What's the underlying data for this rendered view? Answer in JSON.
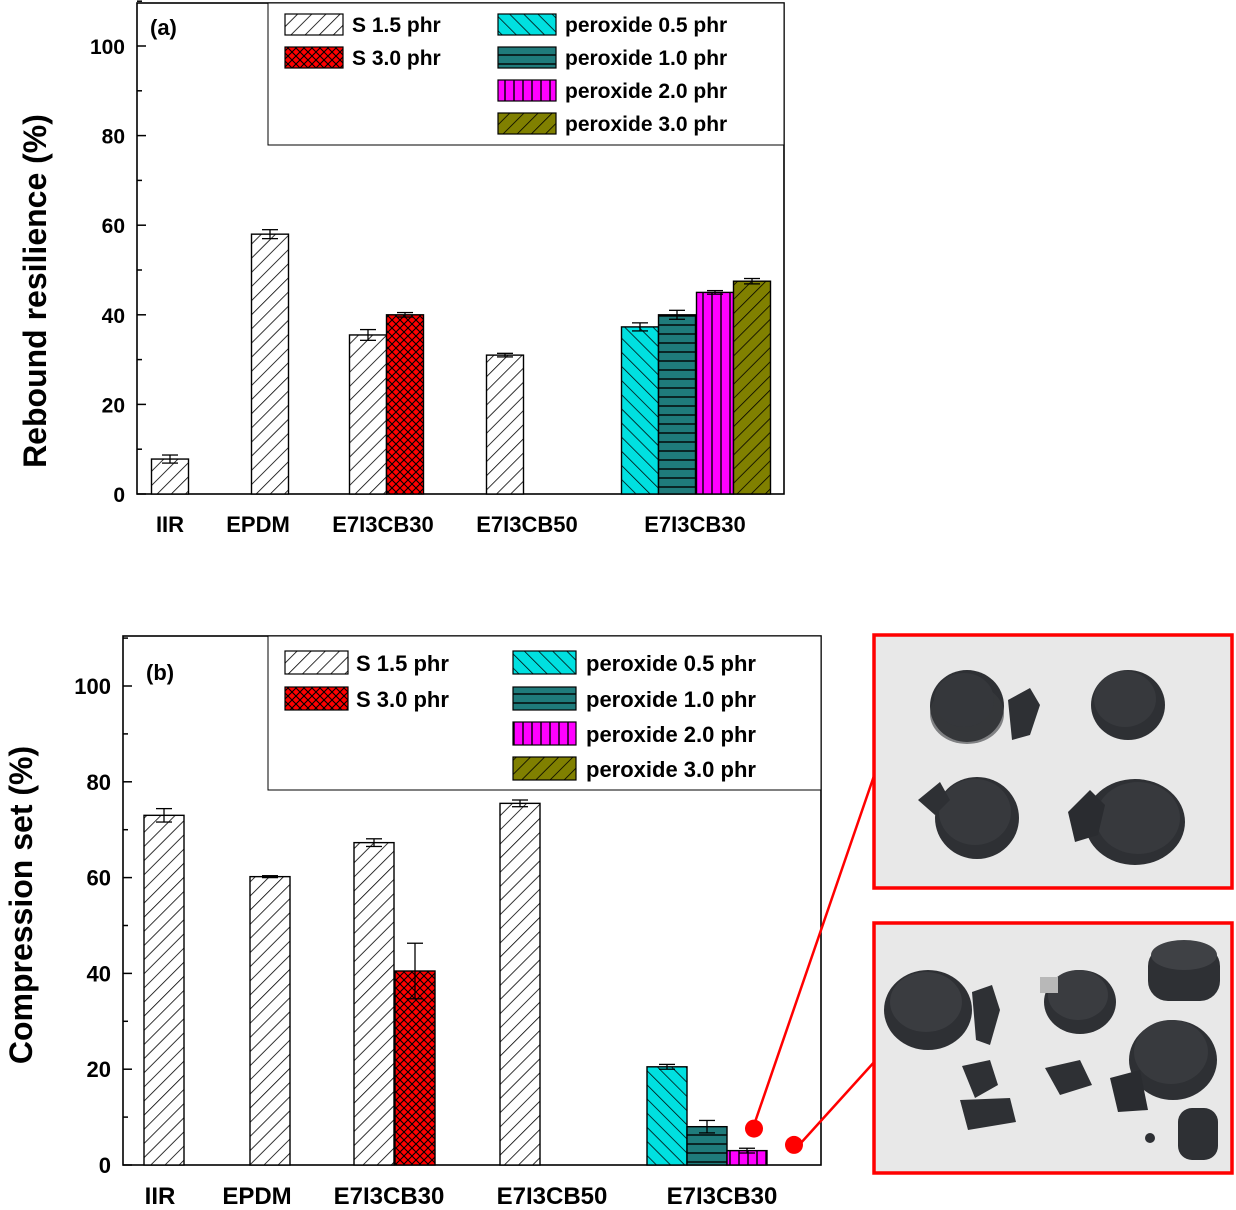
{
  "chart_data": [
    {
      "type": "bar",
      "panel_label": "(a)",
      "ylabel": "Rebound resilience (%)",
      "xlabel": "",
      "ylim": [
        0,
        110
      ],
      "yticks": [
        0,
        20,
        40,
        60,
        80,
        100
      ],
      "ytick_labels": [
        "0",
        "20",
        "40",
        "60",
        "80",
        "100"
      ],
      "categories": [
        "IIR",
        "EPDM",
        "E7I3CB30",
        "E7I3CB50",
        "E7I3CB30"
      ],
      "legend": [
        "S 1.5 phr",
        "S 3.0 phr",
        "peroxide 0.5 phr",
        "peroxide 1.0 phr",
        "peroxide 2.0 phr",
        "peroxide 3.0 phr"
      ],
      "legend_position": "top-right",
      "series": [
        {
          "name": "S 1.5 phr",
          "values": [
            7.8,
            58.0,
            35.5,
            31.0,
            null
          ],
          "errors": [
            0.9,
            1.0,
            1.2,
            0.4,
            null
          ]
        },
        {
          "name": "S 3.0 phr",
          "values": [
            null,
            null,
            40.0,
            null,
            null
          ],
          "errors": [
            null,
            null,
            0.5,
            null,
            null
          ]
        },
        {
          "name": "peroxide 0.5 phr",
          "values": [
            null,
            null,
            null,
            null,
            37.3
          ],
          "errors": [
            null,
            null,
            null,
            null,
            0.9
          ]
        },
        {
          "name": "peroxide 1.0 phr",
          "values": [
            null,
            null,
            null,
            null,
            40.0
          ],
          "errors": [
            null,
            null,
            null,
            null,
            1.0
          ]
        },
        {
          "name": "peroxide 2.0 phr",
          "values": [
            null,
            null,
            null,
            null,
            45.0
          ],
          "errors": [
            null,
            null,
            null,
            null,
            0.4
          ]
        },
        {
          "name": "peroxide 3.0 phr",
          "values": [
            null,
            null,
            null,
            null,
            47.5
          ],
          "errors": [
            null,
            null,
            null,
            null,
            0.6
          ]
        }
      ]
    },
    {
      "type": "bar",
      "panel_label": "(b)",
      "ylabel": "Compression set (%)",
      "xlabel": "",
      "ylim": [
        0,
        110
      ],
      "yticks": [
        0,
        20,
        40,
        60,
        80,
        100
      ],
      "ytick_labels": [
        "0",
        "20",
        "40",
        "60",
        "80",
        "100"
      ],
      "categories": [
        "IIR",
        "EPDM",
        "E7I3CB30",
        "E7I3CB50",
        "E7I3CB30"
      ],
      "legend": [
        "S 1.5 phr",
        "S 3.0 phr",
        "peroxide 0.5 phr",
        "peroxide 1.0 phr",
        "peroxide 2.0 phr",
        "peroxide 3.0 phr"
      ],
      "legend_position": "top-right",
      "series": [
        {
          "name": "S 1.5 phr",
          "values": [
            73.0,
            60.2,
            67.3,
            75.5,
            null
          ],
          "errors": [
            1.4,
            0.2,
            0.8,
            0.7,
            null
          ]
        },
        {
          "name": "S 3.0 phr",
          "values": [
            null,
            null,
            40.5,
            null,
            null
          ],
          "errors": [
            null,
            null,
            5.8,
            null,
            null
          ]
        },
        {
          "name": "peroxide 0.5 phr",
          "values": [
            null,
            null,
            null,
            null,
            20.5
          ],
          "errors": [
            null,
            null,
            null,
            null,
            0.5
          ]
        },
        {
          "name": "peroxide 1.0 phr",
          "values": [
            null,
            null,
            null,
            null,
            8.0
          ],
          "errors": [
            null,
            null,
            null,
            null,
            1.3
          ]
        },
        {
          "name": "peroxide 2.0 phr",
          "values": [
            null,
            null,
            null,
            null,
            3.0
          ],
          "errors": [
            null,
            null,
            null,
            null,
            0.5
          ]
        },
        {
          "name": "peroxide 3.0 phr",
          "values": [
            null,
            null,
            null,
            null,
            null
          ],
          "errors": [
            null,
            null,
            null,
            null,
            null
          ]
        }
      ],
      "markers": [
        {
          "series": "peroxide 3.0 phr",
          "category_index": 4,
          "y": 7.6,
          "color": "#ff0000"
        },
        {
          "series": "peroxide 3.0 phr",
          "category_index": 4,
          "y": 4.2,
          "color": "#ff0000"
        }
      ]
    }
  ],
  "colors": {
    "s15": "#ffffff",
    "s30": "#ff0000",
    "p05": "#00e0e0",
    "p10": "#1f7b7b",
    "p20": "#ff00ff",
    "p30": "#808000",
    "callout": "#ff0000",
    "photo_bg": "#e6e6e6",
    "sample": "#2d2f33"
  },
  "photos": [
    {
      "name": "photo-peroxide-2-phr-samples",
      "samples": 4
    },
    {
      "name": "photo-peroxide-3-phr-samples",
      "samples": 9
    }
  ]
}
